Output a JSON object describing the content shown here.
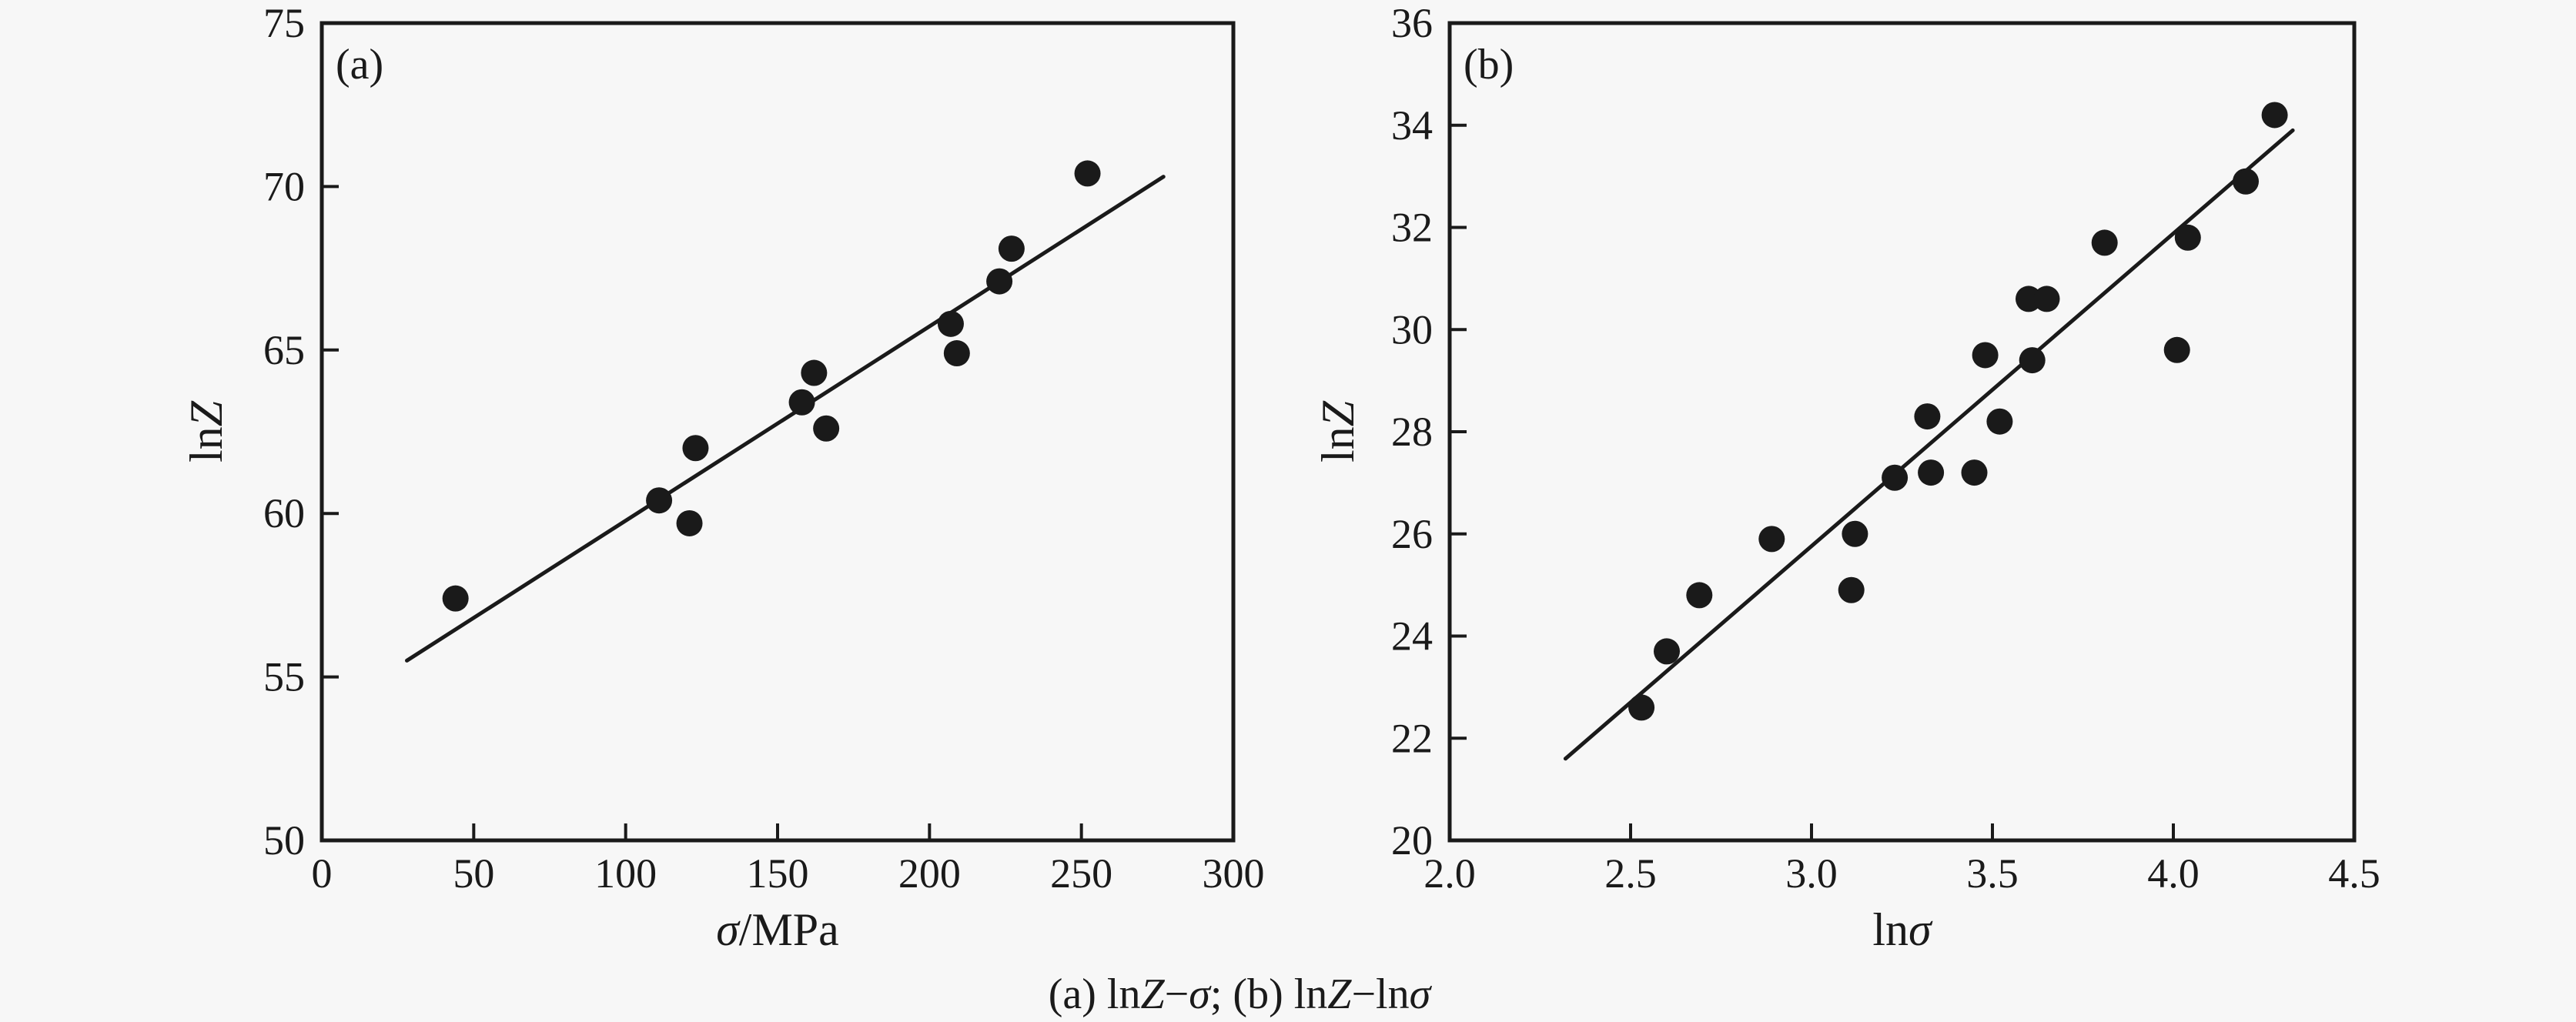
{
  "figure": {
    "background": "#f7f7f7",
    "ink": "#1a1a1a",
    "caption_plain": "(a) lnZ−σ; (b) lnZ−lnσ",
    "caption_parts": [
      {
        "t": "(a) ln",
        "i": false
      },
      {
        "t": "Z",
        "i": true
      },
      {
        "t": "−",
        "i": false
      },
      {
        "t": "σ",
        "i": true
      },
      {
        "t": "; (b) ln",
        "i": false
      },
      {
        "t": "Z",
        "i": true
      },
      {
        "t": "−ln",
        "i": false
      },
      {
        "t": "σ",
        "i": true
      }
    ]
  },
  "chart_data": [
    {
      "type": "scatter",
      "panel_label": "(a)",
      "title": "",
      "xlabel": "σ/MPa",
      "ylabel": "lnZ",
      "xlabel_parts": [
        {
          "t": "σ",
          "i": true
        },
        {
          "t": "/MPa",
          "i": false
        }
      ],
      "ylabel_parts": [
        {
          "t": "ln",
          "i": false
        },
        {
          "t": "Z",
          "i": true
        }
      ],
      "xlim": [
        0,
        300
      ],
      "ylim": [
        50,
        75
      ],
      "grid": false,
      "legend_position": "none",
      "xticks": [
        {
          "v": 0,
          "label": "0"
        },
        {
          "v": 50,
          "label": "50"
        },
        {
          "v": 100,
          "label": "100"
        },
        {
          "v": 150,
          "label": "150"
        },
        {
          "v": 200,
          "label": "200"
        },
        {
          "v": 250,
          "label": "250"
        },
        {
          "v": 300,
          "label": "300"
        }
      ],
      "yticks": [
        {
          "v": 50,
          "label": "50"
        },
        {
          "v": 55,
          "label": "55"
        },
        {
          "v": 60,
          "label": "60"
        },
        {
          "v": 65,
          "label": "65"
        },
        {
          "v": 70,
          "label": "70"
        },
        {
          "v": 75,
          "label": "75"
        }
      ],
      "points": [
        [
          44,
          57.4
        ],
        [
          111,
          60.4
        ],
        [
          121,
          59.7
        ],
        [
          123,
          62.0
        ],
        [
          158,
          63.4
        ],
        [
          162,
          64.3
        ],
        [
          166,
          62.6
        ],
        [
          207,
          65.8
        ],
        [
          209,
          64.9
        ],
        [
          223,
          67.1
        ],
        [
          227,
          68.1
        ],
        [
          252,
          70.4
        ]
      ],
      "fit_line": {
        "x1": 28,
        "y1": 55.5,
        "x2": 277,
        "y2": 70.3
      }
    },
    {
      "type": "scatter",
      "panel_label": "(b)",
      "title": "",
      "xlabel": "lnσ",
      "ylabel": "lnZ",
      "xlabel_parts": [
        {
          "t": "ln",
          "i": false
        },
        {
          "t": "σ",
          "i": true
        }
      ],
      "ylabel_parts": [
        {
          "t": "ln",
          "i": false
        },
        {
          "t": "Z",
          "i": true
        }
      ],
      "xlim": [
        2.0,
        4.5
      ],
      "ylim": [
        20,
        36
      ],
      "grid": false,
      "legend_position": "none",
      "xticks": [
        {
          "v": 2.0,
          "label": "2.0"
        },
        {
          "v": 2.5,
          "label": "2.5"
        },
        {
          "v": 3.0,
          "label": "3.0"
        },
        {
          "v": 3.5,
          "label": "3.5"
        },
        {
          "v": 4.0,
          "label": "4.0"
        },
        {
          "v": 4.5,
          "label": "4.5"
        }
      ],
      "yticks": [
        {
          "v": 20,
          "label": "20"
        },
        {
          "v": 22,
          "label": "22"
        },
        {
          "v": 24,
          "label": "24"
        },
        {
          "v": 26,
          "label": "26"
        },
        {
          "v": 28,
          "label": "28"
        },
        {
          "v": 30,
          "label": "30"
        },
        {
          "v": 32,
          "label": "32"
        },
        {
          "v": 34,
          "label": "34"
        },
        {
          "v": 36,
          "label": "36"
        }
      ],
      "points": [
        [
          2.53,
          22.6
        ],
        [
          2.6,
          23.7
        ],
        [
          2.69,
          24.8
        ],
        [
          2.89,
          25.9
        ],
        [
          3.11,
          24.9
        ],
        [
          3.12,
          26.0
        ],
        [
          3.23,
          27.1
        ],
        [
          3.32,
          28.3
        ],
        [
          3.33,
          27.2
        ],
        [
          3.45,
          27.2
        ],
        [
          3.48,
          29.5
        ],
        [
          3.52,
          28.2
        ],
        [
          3.6,
          30.6
        ],
        [
          3.65,
          30.6
        ],
        [
          3.61,
          29.4
        ],
        [
          3.81,
          31.7
        ],
        [
          4.01,
          29.6
        ],
        [
          4.04,
          31.8
        ],
        [
          4.2,
          32.9
        ],
        [
          4.28,
          34.2
        ]
      ],
      "fit_line": {
        "x1": 2.32,
        "y1": 21.6,
        "x2": 4.33,
        "y2": 33.9
      }
    }
  ]
}
